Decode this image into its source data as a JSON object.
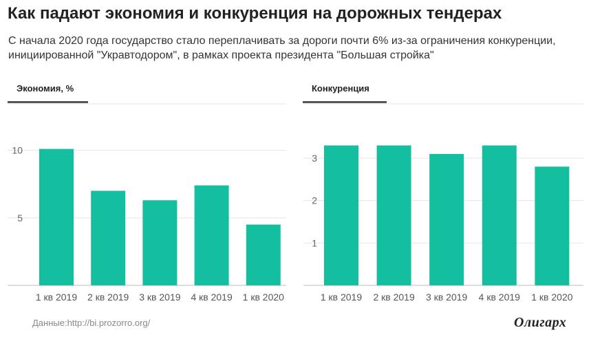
{
  "title": "Как падают экономия и конкуренция на дорожных тендерах",
  "subtitle": "С начала 2020 года государство стало переплачивать за дороги почти 6% из-за ограничения конкуренции, инициированной \"Укравтодором\", в рамках проекта президента \"Большая стройка\"",
  "source": "Данные:http://bi.prozorro.org/",
  "logo": "Олигарх",
  "colors": {
    "bar": "#13bf9e",
    "grid": "#e6e6e6",
    "tab_underline": "#555555"
  },
  "chart_data": [
    {
      "type": "bar",
      "title": "Экономия, %",
      "categories": [
        "1 кв 2019",
        "2 кв 2019",
        "3 кв 2019",
        "4 кв 2019",
        "1 кв 2020"
      ],
      "values": [
        10.1,
        7.0,
        6.3,
        7.4,
        4.5
      ],
      "yticks": [
        5,
        10
      ],
      "ylim": [
        0,
        11.3
      ],
      "grid": true
    },
    {
      "type": "bar",
      "title": "Конкуренция",
      "categories": [
        "1 кв 2019",
        "2 кв 2019",
        "3 кв 2019",
        "4 кв 2019",
        "1 кв 2020"
      ],
      "values": [
        3.3,
        3.3,
        3.1,
        3.3,
        2.8
      ],
      "yticks": [
        1,
        2,
        3
      ],
      "ylim": [
        0,
        3.6
      ],
      "grid": true
    }
  ]
}
